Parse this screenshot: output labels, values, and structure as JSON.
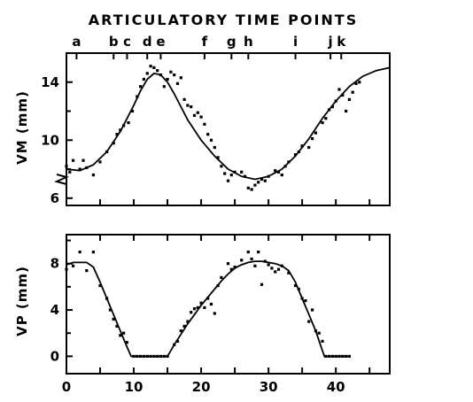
{
  "chart_data": [
    {
      "id": "vm",
      "type": "scatter",
      "title": "ARTICULATORY TIME POINTS",
      "ylabel": "VM (mm)",
      "xlim": [
        0,
        48
      ],
      "ylim": [
        5.5,
        16
      ],
      "y_axis_break_at": 5.5,
      "y_ticks": [
        6,
        10,
        14
      ],
      "y_tick_labels": [
        "6",
        "10",
        "14"
      ],
      "top_labels": [
        {
          "label": "a",
          "x": 1.5
        },
        {
          "label": "b",
          "x": 7
        },
        {
          "label": "c",
          "x": 9
        },
        {
          "label": "d",
          "x": 12
        },
        {
          "label": "e",
          "x": 14
        },
        {
          "label": "f",
          "x": 20.5
        },
        {
          "label": "g",
          "x": 24.5
        },
        {
          "label": "h",
          "x": 27
        },
        {
          "label": "i",
          "x": 34
        },
        {
          "label": "j",
          "x": 39.2
        },
        {
          "label": "k",
          "x": 40.8
        }
      ],
      "points": [
        [
          0,
          8.2
        ],
        [
          0.5,
          7.8
        ],
        [
          1,
          8.6
        ],
        [
          2,
          8.0
        ],
        [
          2.5,
          8.6
        ],
        [
          3,
          8.1
        ],
        [
          4,
          7.6
        ],
        [
          5,
          8.5
        ],
        [
          6,
          9.2
        ],
        [
          7,
          9.8
        ],
        [
          7.5,
          10.4
        ],
        [
          8,
          10.7
        ],
        [
          8.5,
          11.0
        ],
        [
          9.2,
          11.2
        ],
        [
          9.8,
          12.0
        ],
        [
          10.5,
          13.0
        ],
        [
          11,
          13.7
        ],
        [
          11.5,
          14.2
        ],
        [
          12,
          14.6
        ],
        [
          12.5,
          15.1
        ],
        [
          13,
          15.0
        ],
        [
          13.5,
          14.8
        ],
        [
          14,
          14.5
        ],
        [
          14.5,
          13.7
        ],
        [
          15,
          14.2
        ],
        [
          15.5,
          14.7
        ],
        [
          16,
          14.5
        ],
        [
          16.5,
          13.9
        ],
        [
          17,
          14.3
        ],
        [
          17.5,
          12.8
        ],
        [
          18,
          12.4
        ],
        [
          18.5,
          12.3
        ],
        [
          19,
          11.7
        ],
        [
          19.5,
          11.9
        ],
        [
          20,
          11.6
        ],
        [
          20.5,
          11.1
        ],
        [
          21,
          10.4
        ],
        [
          21.5,
          10.0
        ],
        [
          22,
          9.5
        ],
        [
          22.5,
          8.8
        ],
        [
          23,
          8.2
        ],
        [
          23.5,
          7.7
        ],
        [
          24,
          7.2
        ],
        [
          24.5,
          7.6
        ],
        [
          25,
          7.8
        ],
        [
          26,
          7.8
        ],
        [
          26.5,
          7.5
        ],
        [
          27,
          6.7
        ],
        [
          27.5,
          6.6
        ],
        [
          28,
          6.9
        ],
        [
          28.5,
          7.1
        ],
        [
          29,
          7.3
        ],
        [
          29.5,
          7.2
        ],
        [
          30,
          7.5
        ],
        [
          31,
          7.9
        ],
        [
          31.5,
          7.8
        ],
        [
          32,
          7.6
        ],
        [
          32.5,
          8.2
        ],
        [
          33,
          8.5
        ],
        [
          34,
          9.0
        ],
        [
          34.5,
          9.2
        ],
        [
          35,
          9.6
        ],
        [
          36,
          9.5
        ],
        [
          36.5,
          10.1
        ],
        [
          37,
          10.5
        ],
        [
          38,
          11.2
        ],
        [
          38.5,
          11.5
        ],
        [
          39,
          12.1
        ],
        [
          39.5,
          12.3
        ],
        [
          40,
          12.7
        ],
        [
          40.5,
          13.5
        ],
        [
          41,
          13.1
        ],
        [
          41.5,
          12.0
        ],
        [
          42,
          12.8
        ],
        [
          42.5,
          13.3
        ],
        [
          43,
          13.9
        ],
        [
          43.5,
          14.0
        ]
      ],
      "fit_curve": [
        [
          0,
          8.0
        ],
        [
          2,
          7.9
        ],
        [
          4,
          8.3
        ],
        [
          6,
          9.2
        ],
        [
          8,
          10.6
        ],
        [
          10,
          12.4
        ],
        [
          11,
          13.4
        ],
        [
          12,
          14.2
        ],
        [
          13,
          14.6
        ],
        [
          14,
          14.5
        ],
        [
          15,
          14.0
        ],
        [
          16,
          13.2
        ],
        [
          18,
          11.4
        ],
        [
          20,
          10.0
        ],
        [
          22,
          8.9
        ],
        [
          24,
          8.0
        ],
        [
          26,
          7.5
        ],
        [
          28,
          7.3
        ],
        [
          30,
          7.5
        ],
        [
          32,
          8.0
        ],
        [
          34,
          8.9
        ],
        [
          36,
          10.1
        ],
        [
          38,
          11.5
        ],
        [
          40,
          12.7
        ],
        [
          42,
          13.7
        ],
        [
          44,
          14.4
        ],
        [
          46,
          14.8
        ],
        [
          48,
          15.0
        ]
      ]
    },
    {
      "id": "vp",
      "type": "scatter",
      "ylabel": "VP (mm)",
      "xlim": [
        0,
        48
      ],
      "ylim": [
        -1.5,
        10.5
      ],
      "x_ticks": [
        0,
        10,
        20,
        30,
        40
      ],
      "x_tick_labels": [
        "0",
        "10",
        "20",
        "30",
        "40"
      ],
      "y_ticks": [
        0,
        4,
        8
      ],
      "y_tick_labels": [
        "0",
        "4",
        "8"
      ],
      "points": [
        [
          0,
          7.5
        ],
        [
          1,
          7.8
        ],
        [
          2,
          9.0
        ],
        [
          3,
          7.4
        ],
        [
          4,
          9.0
        ],
        [
          5,
          6.1
        ],
        [
          6,
          5.0
        ],
        [
          6.5,
          4.0
        ],
        [
          7,
          3.2
        ],
        [
          7.5,
          2.6
        ],
        [
          8,
          1.8
        ],
        [
          8.5,
          2.0
        ],
        [
          9,
          1.2
        ],
        [
          10,
          0
        ],
        [
          10.5,
          0
        ],
        [
          11,
          0
        ],
        [
          11.5,
          0
        ],
        [
          12,
          0
        ],
        [
          12.5,
          0
        ],
        [
          13,
          0
        ],
        [
          13.5,
          0
        ],
        [
          14,
          0
        ],
        [
          14.5,
          0
        ],
        [
          15,
          0
        ],
        [
          16,
          1.0
        ],
        [
          16.5,
          1.3
        ],
        [
          17,
          2.2
        ],
        [
          17.5,
          2.6
        ],
        [
          18,
          3.0
        ],
        [
          18.5,
          3.8
        ],
        [
          19,
          4.1
        ],
        [
          19.5,
          4.2
        ],
        [
          20,
          4.6
        ],
        [
          20.5,
          4.2
        ],
        [
          21,
          5.0
        ],
        [
          21.5,
          4.5
        ],
        [
          22,
          3.7
        ],
        [
          22.5,
          6.1
        ],
        [
          23,
          6.8
        ],
        [
          24,
          8.0
        ],
        [
          24.5,
          7.5
        ],
        [
          25,
          7.7
        ],
        [
          26,
          8.3
        ],
        [
          27,
          9.0
        ],
        [
          27.5,
          8.4
        ],
        [
          28,
          7.8
        ],
        [
          28.5,
          9.0
        ],
        [
          29,
          6.2
        ],
        [
          29.5,
          8.2
        ],
        [
          30,
          7.9
        ],
        [
          30.5,
          7.6
        ],
        [
          31,
          7.3
        ],
        [
          31.5,
          7.5
        ],
        [
          32,
          7.8
        ],
        [
          33,
          7.2
        ],
        [
          34,
          6.1
        ],
        [
          34.5,
          5.8
        ],
        [
          35,
          5.0
        ],
        [
          35.5,
          4.8
        ],
        [
          36,
          3.0
        ],
        [
          36.5,
          4.0
        ],
        [
          37,
          2.2
        ],
        [
          37.5,
          2.0
        ],
        [
          38,
          1.3
        ],
        [
          38.5,
          0
        ],
        [
          39,
          0
        ],
        [
          39.5,
          0
        ],
        [
          40,
          0
        ],
        [
          40.5,
          0
        ],
        [
          41,
          0
        ],
        [
          41.5,
          0
        ],
        [
          42,
          0
        ]
      ],
      "fit_curve": [
        [
          0,
          7.9
        ],
        [
          1,
          8.1
        ],
        [
          3,
          8.1
        ],
        [
          4,
          7.7
        ],
        [
          5,
          6.4
        ],
        [
          6,
          5.0
        ],
        [
          7,
          3.6
        ],
        [
          8,
          2.2
        ],
        [
          9,
          0.8
        ],
        [
          9.6,
          0
        ],
        [
          15,
          0
        ],
        [
          16,
          1.0
        ],
        [
          17,
          1.9
        ],
        [
          18,
          2.8
        ],
        [
          19,
          3.6
        ],
        [
          20,
          4.4
        ],
        [
          21,
          5.1
        ],
        [
          22,
          5.8
        ],
        [
          23,
          6.5
        ],
        [
          24,
          7.1
        ],
        [
          25,
          7.6
        ],
        [
          26,
          7.9
        ],
        [
          27,
          8.1
        ],
        [
          28,
          8.2
        ],
        [
          29,
          8.2
        ],
        [
          30,
          8.1
        ],
        [
          31,
          8.0
        ],
        [
          32,
          7.8
        ],
        [
          33,
          7.4
        ],
        [
          34,
          6.4
        ],
        [
          35,
          5.0
        ],
        [
          36,
          3.6
        ],
        [
          37,
          2.2
        ],
        [
          37.7,
          1.0
        ],
        [
          38.3,
          0
        ],
        [
          42,
          0
        ]
      ]
    }
  ]
}
